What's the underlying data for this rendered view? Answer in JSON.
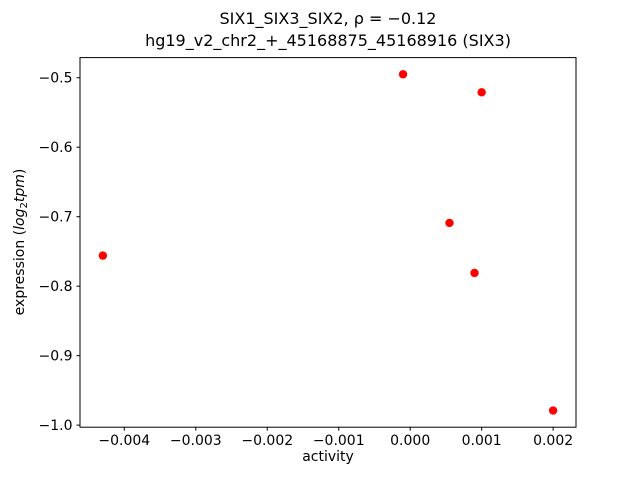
{
  "figure": {
    "title_line1": "SIX1_SIX3_SIX2, ρ = −0.12",
    "title_line2": "hg19_v2_chr2_+_45168875_45168916 (SIX3)",
    "xlabel": "activity",
    "ylabel": {
      "prefix": "expression (",
      "italic1": "log",
      "sub": "2",
      "italic2": "tpm",
      "suffix": ")"
    }
  },
  "chart_data": {
    "type": "scatter",
    "title": "SIX1_SIX3_SIX2, ρ = −0.12",
    "subtitle": "hg19_v2_chr2_+_45168875_45168916 (SIX3)",
    "xlabel": "activity",
    "ylabel": "expression (log2 tpm)",
    "marker_color": "#ff0000",
    "marker_radius": 4.2,
    "points": [
      [
        -0.0001,
        -0.495
      ],
      [
        0.001,
        -0.521
      ],
      [
        0.00055,
        -0.709
      ],
      [
        -0.0043,
        -0.756
      ],
      [
        0.0009,
        -0.781
      ],
      [
        0.002,
        -0.979
      ]
    ],
    "xlim": [
      -0.00462,
      0.00232
    ],
    "ylim": [
      -1.003,
      -0.471
    ],
    "xticks": {
      "values": [
        -0.004,
        -0.003,
        -0.002,
        -0.001,
        0.0,
        0.001,
        0.002
      ],
      "labels": [
        "−0.004",
        "−0.003",
        "−0.002",
        "−0.001",
        "0.000",
        "0.001",
        "0.002"
      ]
    },
    "yticks": {
      "values": [
        -1.0,
        -0.9,
        -0.8,
        -0.7,
        -0.6,
        -0.5
      ],
      "labels": [
        "−1.0",
        "−0.9",
        "−0.8",
        "−0.7",
        "−0.6",
        "−0.5"
      ]
    },
    "grid": false,
    "legend": false
  }
}
